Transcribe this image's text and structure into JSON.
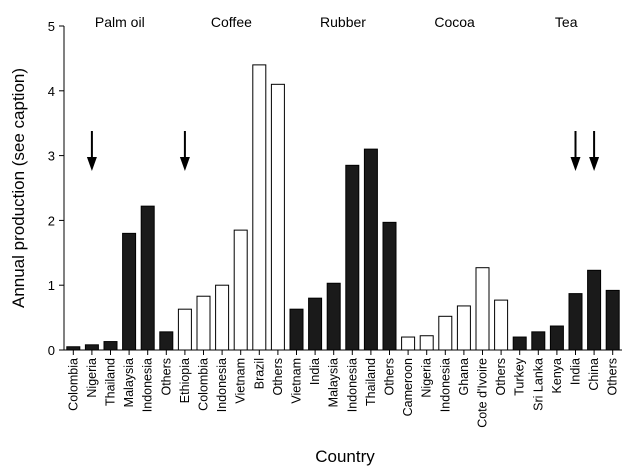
{
  "chart_data": {
    "type": "bar",
    "xlabel": "Country",
    "ylabel": "Annual production (see caption)",
    "ylim": [
      0,
      5
    ],
    "yticks": [
      0,
      1,
      2,
      3,
      4,
      5
    ],
    "grid": false,
    "legend": "none",
    "categories": [
      "Colombia",
      "Nigeria",
      "Thailand",
      "Malaysia",
      "Indonesia",
      "Others",
      "Ethiopia",
      "Colombia",
      "Indonesia",
      "Vietnam",
      "Brazil",
      "Others",
      "Vietnam",
      "India",
      "Malaysia",
      "Indonesia",
      "Thailand",
      "Others",
      "Cameroon",
      "Nigeria",
      "Indonesia",
      "Ghana",
      "Cote d'Ivoire",
      "Others",
      "Turkey",
      "Sri Lanka",
      "Kenya",
      "India",
      "China",
      "Others"
    ],
    "values": [
      0.05,
      0.08,
      0.13,
      1.8,
      2.22,
      0.28,
      0.63,
      0.83,
      1.0,
      1.85,
      4.4,
      4.1,
      0.63,
      0.8,
      1.03,
      2.85,
      3.1,
      1.97,
      0.2,
      0.22,
      0.52,
      0.68,
      1.27,
      0.77,
      0.2,
      0.28,
      0.37,
      0.87,
      1.23,
      0.92
    ],
    "groups": [
      {
        "name": "Palm oil",
        "start": 0,
        "count": 6,
        "fill": "black"
      },
      {
        "name": "Coffee",
        "start": 6,
        "count": 6,
        "fill": "white"
      },
      {
        "name": "Rubber",
        "start": 12,
        "count": 6,
        "fill": "black"
      },
      {
        "name": "Cocoa",
        "start": 18,
        "count": 6,
        "fill": "white"
      },
      {
        "name": "Tea",
        "start": 24,
        "count": 6,
        "fill": "black"
      }
    ],
    "arrows_at": [
      1,
      6,
      27,
      28
    ],
    "colors": {
      "dark_bar": "#1a1a1a",
      "light_bar": "#ffffff",
      "outline": "#000000"
    }
  }
}
